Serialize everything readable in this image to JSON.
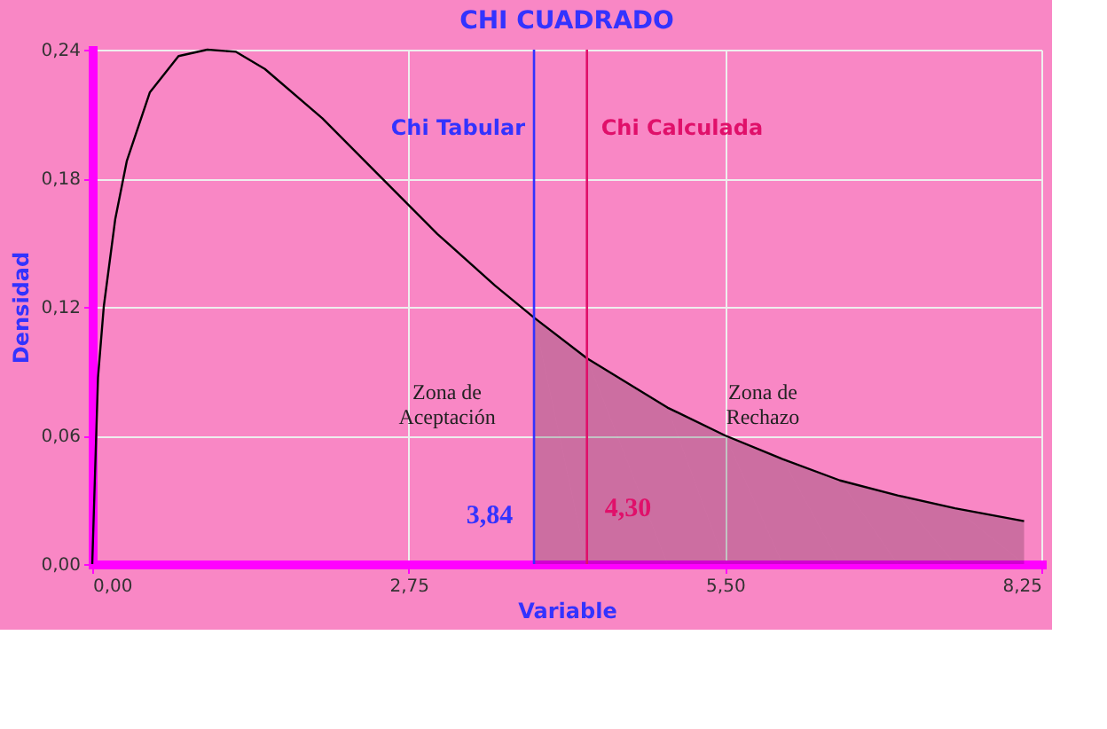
{
  "chart_data": {
    "type": "line",
    "title": "CHI CUADRADO",
    "xlabel": "Variable",
    "ylabel": "Densidad",
    "x": [
      0,
      0.05,
      0.1,
      0.2,
      0.3,
      0.5,
      0.75,
      1,
      1.25,
      1.5,
      2,
      2.5,
      3,
      3.5,
      3.84,
      4.3,
      5,
      5.5,
      6,
      6.5,
      7,
      7.5,
      8.1
    ],
    "series": [
      {
        "color": "#000000",
        "values": [
          0,
          0.087,
          0.12,
          0.161,
          0.188,
          0.22,
          0.237,
          0.24,
          0.239,
          0.231,
          0.208,
          0.181,
          0.154,
          0.13,
          0.115,
          0.096,
          0.073,
          0.06,
          0.049,
          0.039,
          0.032,
          0.026,
          0.02
        ]
      },
      {
        "type": "area",
        "color": "#000000",
        "x": [
          3.84,
          4.3,
          5,
          5.5,
          6,
          6.5,
          7,
          7.5,
          8.1
        ],
        "values": [
          0.115,
          0.096,
          0.073,
          0.06,
          0.049,
          0.039,
          0.032,
          0.026,
          0.02
        ]
      }
    ],
    "xlim": [
      0,
      8.25
    ],
    "ylim": [
      0,
      0.24
    ],
    "xticks": [
      {
        "value": 0,
        "label": "0,00"
      },
      {
        "value": 2.75,
        "label": "2,75"
      },
      {
        "value": 5.5,
        "label": "5,50"
      },
      {
        "value": 8.25,
        "label": "8,25"
      }
    ],
    "yticks": [
      {
        "value": 0,
        "label": "0,00"
      },
      {
        "value": 0.06,
        "label": "0,06"
      },
      {
        "value": 0.12,
        "label": "0,12"
      },
      {
        "value": 0.18,
        "label": "0,18"
      },
      {
        "value": 0.24,
        "label": "0,24"
      }
    ],
    "ref_lines": [
      {
        "axis": "x",
        "value": 3.84,
        "label": "Chi Tabular",
        "color": "#3333ff"
      },
      {
        "axis": "x",
        "value": 4.3,
        "label": "Chi Calculada",
        "color": "#e0106a"
      }
    ],
    "annotations": [
      "3,84",
      "4,30",
      "Zona de\nAceptación",
      "Zona de\nRechazo"
    ],
    "grid": true,
    "marker": "none",
    "line_style": "solid"
  }
}
